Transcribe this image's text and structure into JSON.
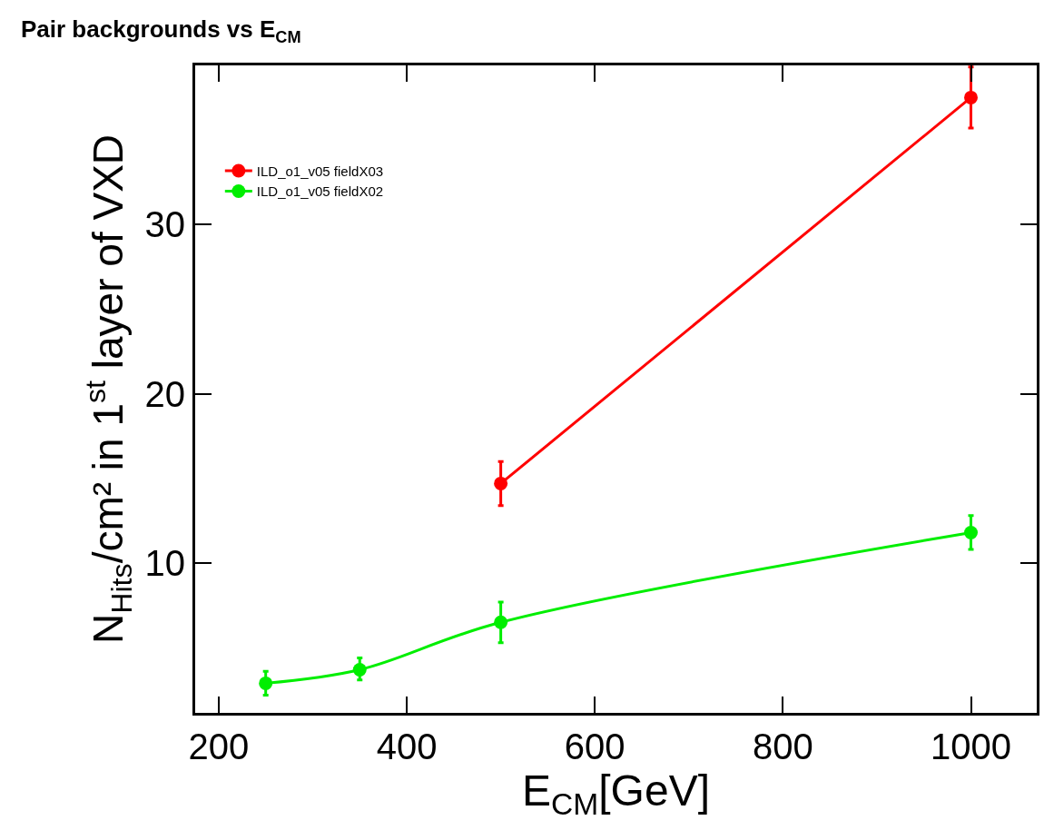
{
  "chart_data": {
    "type": "line",
    "title": "Pair backgrounds vs E$_{CM}$",
    "xlabel": "E$_{CM}$[GeV]",
    "ylabel": "N$_{Hits}$/cm² in 1$^{st}$ layer of VXD",
    "xlim": [
      175,
      1070
    ],
    "ylim": [
      1.15,
      39.4
    ],
    "xticks": [
      200,
      400,
      600,
      800,
      1000
    ],
    "yticks": [
      10,
      20,
      30
    ],
    "legend": "top left",
    "marker": "circle",
    "line_style": "solid",
    "series": [
      {
        "name": "ILD_o1_v05 fieldX03",
        "color": "#ff0000",
        "x": [
          500,
          1000
        ],
        "values": [
          14.7,
          37.5
        ],
        "errors": [
          1.3,
          1.8
        ]
      },
      {
        "name": "ILD_o1_v05 fieldX02",
        "color": "#00ee00",
        "x": [
          250,
          350,
          500,
          1000
        ],
        "values": [
          2.9,
          3.7,
          6.5,
          11.8
        ],
        "errors": [
          [
            2.2,
            3.6
          ],
          [
            3.1,
            4.4
          ],
          [
            5.3,
            7.7
          ],
          [
            10.8,
            12.8
          ]
        ]
      }
    ]
  }
}
